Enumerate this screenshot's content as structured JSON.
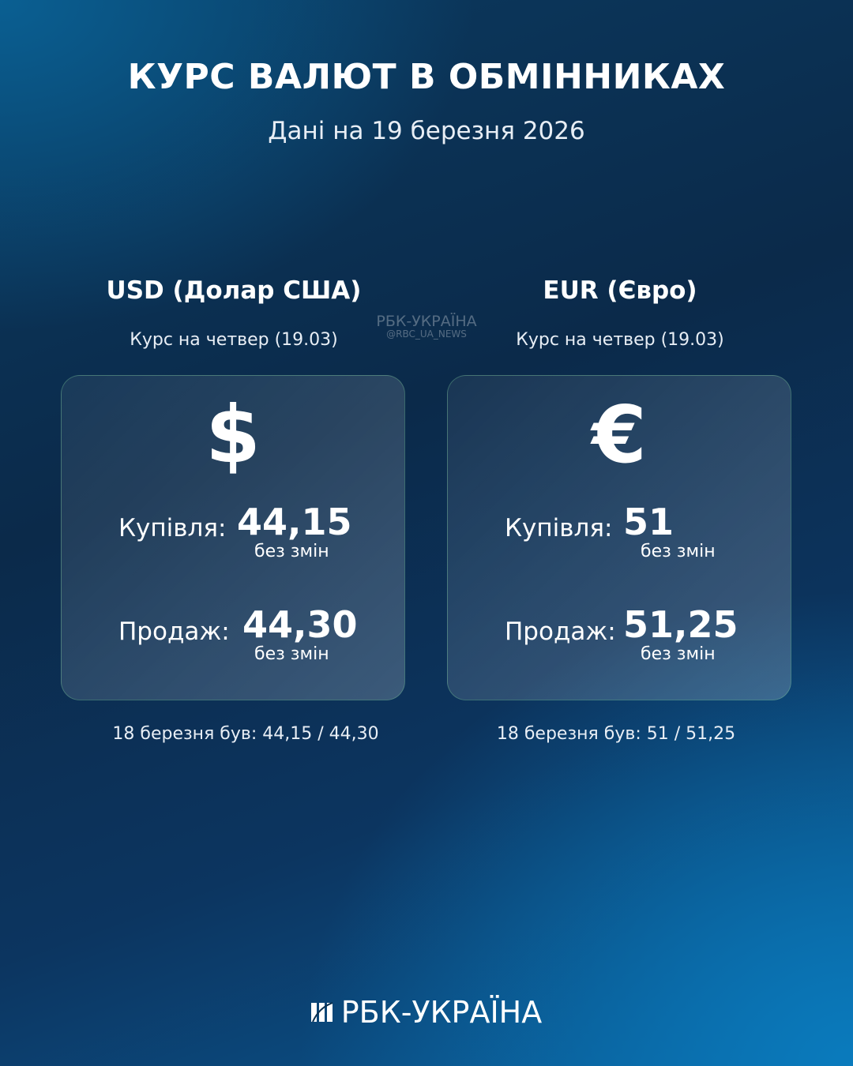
{
  "header": {
    "title": "КУРС ВАЛЮТ В ОБМІННИКАХ",
    "subtitle": "Дані на 19 березня 2026"
  },
  "watermark": {
    "brand": "РБК-УКРАЇНА",
    "handle": "@RBC_UA_NEWS"
  },
  "currencies": [
    {
      "name": "USD (Долар США)",
      "day": "Курс на четвер (19.03)",
      "symbol": "$",
      "icon": "dollar-icon",
      "buy_label": "Купівля:",
      "buy": "44,15",
      "buy_change": "без змін",
      "sell_label": "Продаж:",
      "sell": "44,30",
      "sell_change": "без змін",
      "previous": "18 березня був: 44,15 / 44,30"
    },
    {
      "name": "EUR (Євро)",
      "day": "Курс на четвер (19.03)",
      "symbol": "€",
      "icon": "euro-icon",
      "buy_label": "Купівля:",
      "buy": "51",
      "buy_change": "без змін",
      "sell_label": "Продаж:",
      "sell": "51,25",
      "sell_change": "без змін",
      "previous": "18 березня був: 51 / 51,25"
    }
  ],
  "footer": {
    "logo": "РБК-УКРАЇНА"
  }
}
